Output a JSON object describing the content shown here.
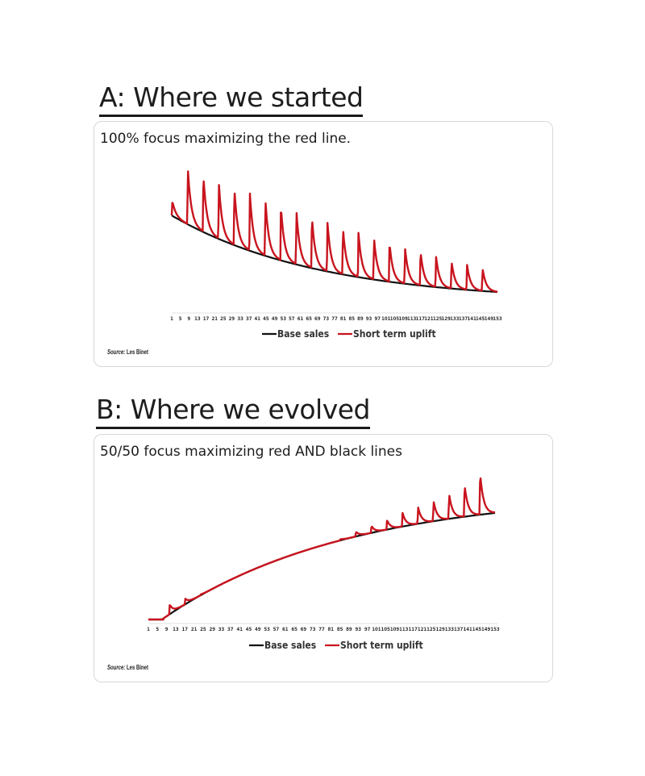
{
  "section_a": {
    "title": "A: Where we started",
    "caption": "100% focus maximizing the red line.",
    "source_label": "Source:",
    "source_name": " Les Binet"
  },
  "section_b": {
    "title": "B: Where we evolved",
    "caption": "50/50 focus maximizing red AND black lines",
    "source_label": "Source:",
    "source_name": " Les Binet"
  },
  "chart_data": [
    {
      "type": "line",
      "x": [
        1,
        5,
        9,
        13,
        17,
        21,
        25,
        29,
        33,
        37,
        41,
        45,
        49,
        53,
        57,
        61,
        65,
        69,
        73,
        77,
        81,
        85,
        89,
        93,
        97,
        101,
        105,
        109,
        113,
        117,
        121,
        125,
        129,
        133,
        137,
        141,
        145,
        149,
        153
      ],
      "xlabel": "",
      "ylabel": "",
      "grid": false,
      "legend": "bottom",
      "colors": {
        "base": "#111111",
        "uplift": "#c8141e"
      },
      "series": [
        {
          "name": "Base sales",
          "trend": "decay",
          "start": 0.62,
          "end": 0.0
        },
        {
          "name": "Short term uplift",
          "spike_period": 7,
          "spikes": [
            0.74,
            1.0,
            0.95,
            0.88,
            0.84,
            0.8,
            0.75,
            0.7,
            0.66,
            0.61,
            0.57,
            0.52,
            0.48,
            0.44,
            0.4,
            0.36,
            0.33,
            0.29,
            0.25,
            0.22,
            0.19
          ]
        }
      ]
    },
    {
      "type": "line",
      "x": [
        1,
        5,
        9,
        13,
        17,
        21,
        25,
        29,
        33,
        37,
        41,
        45,
        49,
        53,
        57,
        61,
        65,
        69,
        73,
        77,
        81,
        85,
        89,
        93,
        97,
        101,
        105,
        109,
        113,
        117,
        121,
        125,
        129,
        133,
        137,
        141,
        145,
        149,
        153
      ],
      "xlabel": "",
      "ylabel": "",
      "grid": false,
      "legend": "bottom",
      "colors": {
        "base": "#111111",
        "uplift": "#c8141e"
      },
      "series": [
        {
          "name": "Base sales",
          "trend": "growth",
          "start": 0.0,
          "end": 0.72
        },
        {
          "name": "Short term uplift",
          "spike_period": 7,
          "spikes": [
            0.1,
            0.14,
            0.17,
            0.22,
            0.26,
            0.3,
            0.34,
            0.38,
            0.42,
            0.47,
            0.51,
            0.55,
            0.6,
            0.64,
            0.68,
            0.73,
            0.77,
            0.81,
            0.86,
            0.92,
            1.0
          ]
        }
      ]
    }
  ]
}
